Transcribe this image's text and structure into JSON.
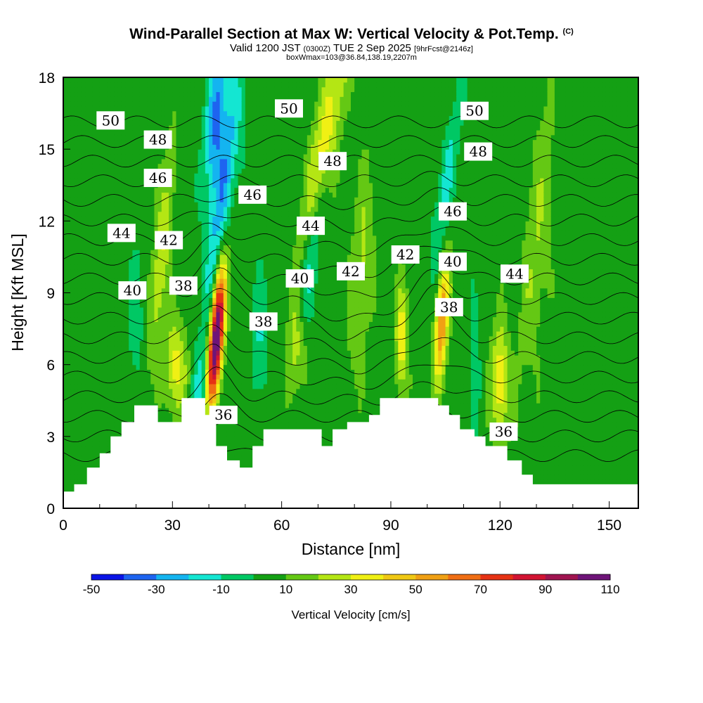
{
  "title": {
    "main": "Wind-Parallel Section at Max W: Vertical Velocity & Pot.Temp.",
    "copyright": "(C)",
    "valid_prefix": "Valid 1200 JST",
    "valid_utc": "(0300Z)",
    "valid_date": "TUE 2 Sep 2025",
    "forecast": "[9hrFcst@2146z]",
    "box": "boxWmax=103@36.84,138.19,2207m"
  },
  "chart_data": {
    "type": "heatmap",
    "xlabel": "Distance [nm]",
    "ylabel": "Height [Kft MSL]",
    "xlim": [
      0,
      158
    ],
    "ylim": [
      0,
      18
    ],
    "x_ticks": [
      0,
      30,
      60,
      90,
      120,
      150
    ],
    "y_ticks": [
      0,
      3,
      6,
      9,
      12,
      15,
      18
    ],
    "colorbar": {
      "label": "Vertical Velocity [cm/s]",
      "ticks": [
        -50,
        -30,
        -10,
        10,
        30,
        50,
        70,
        90,
        110
      ],
      "levels": [
        -50,
        -40,
        -30,
        -20,
        -10,
        0,
        10,
        20,
        30,
        40,
        50,
        60,
        70,
        80,
        90,
        100,
        110
      ],
      "colors": [
        "#0a14e6",
        "#1e64f0",
        "#14b4f0",
        "#14e6d2",
        "#00c864",
        "#14a014",
        "#64c814",
        "#b4e614",
        "#f0f014",
        "#f0c814",
        "#f0a014",
        "#f06e14",
        "#e63214",
        "#d21432",
        "#a01450",
        "#6e1478"
      ]
    },
    "theta_contours_K": [
      36,
      38,
      40,
      42,
      44,
      46,
      48,
      50
    ],
    "contour_labels": [
      {
        "text": "50",
        "x": 13,
        "y": 16.2
      },
      {
        "text": "48",
        "x": 26,
        "y": 15.4
      },
      {
        "text": "46",
        "x": 26,
        "y": 13.8
      },
      {
        "text": "44",
        "x": 16,
        "y": 11.5
      },
      {
        "text": "42",
        "x": 29,
        "y": 11.2
      },
      {
        "text": "40",
        "x": 19,
        "y": 9.1
      },
      {
        "text": "38",
        "x": 33,
        "y": 9.3
      },
      {
        "text": "46",
        "x": 52,
        "y": 13.1
      },
      {
        "text": "50",
        "x": 62,
        "y": 16.7
      },
      {
        "text": "48",
        "x": 74,
        "y": 14.5
      },
      {
        "text": "44",
        "x": 68,
        "y": 11.8
      },
      {
        "text": "40",
        "x": 65,
        "y": 9.6
      },
      {
        "text": "42",
        "x": 79,
        "y": 9.9
      },
      {
        "text": "42",
        "x": 94,
        "y": 10.6
      },
      {
        "text": "38",
        "x": 55,
        "y": 7.8
      },
      {
        "text": "36",
        "x": 44,
        "y": 3.9
      },
      {
        "text": "50",
        "x": 113,
        "y": 16.6
      },
      {
        "text": "48",
        "x": 114,
        "y": 14.9
      },
      {
        "text": "46",
        "x": 107,
        "y": 12.4
      },
      {
        "text": "40",
        "x": 107,
        "y": 10.3
      },
      {
        "text": "38",
        "x": 106,
        "y": 8.4
      },
      {
        "text": "44",
        "x": 124,
        "y": 9.8
      },
      {
        "text": "36",
        "x": 121,
        "y": 3.2
      }
    ],
    "terrain_height_kft": [
      {
        "x": 0,
        "y": 0.7
      },
      {
        "x": 3,
        "y": 1.0
      },
      {
        "x": 6.5,
        "y": 1.7
      },
      {
        "x": 10,
        "y": 2.3
      },
      {
        "x": 13,
        "y": 3.0
      },
      {
        "x": 16,
        "y": 3.6
      },
      {
        "x": 19.5,
        "y": 4.3
      },
      {
        "x": 26,
        "y": 3.6
      },
      {
        "x": 32.5,
        "y": 4.6
      },
      {
        "x": 39,
        "y": 3.9
      },
      {
        "x": 42,
        "y": 2.6
      },
      {
        "x": 45,
        "y": 2.0
      },
      {
        "x": 48.5,
        "y": 1.7
      },
      {
        "x": 52,
        "y": 2.6
      },
      {
        "x": 55,
        "y": 3.3
      },
      {
        "x": 71,
        "y": 2.6
      },
      {
        "x": 74,
        "y": 3.3
      },
      {
        "x": 78,
        "y": 3.6
      },
      {
        "x": 84,
        "y": 3.9
      },
      {
        "x": 87,
        "y": 4.6
      },
      {
        "x": 103,
        "y": 4.3
      },
      {
        "x": 106,
        "y": 3.9
      },
      {
        "x": 109,
        "y": 3.3
      },
      {
        "x": 113,
        "y": 3.0
      },
      {
        "x": 116,
        "y": 2.6
      },
      {
        "x": 122,
        "y": 2.0
      },
      {
        "x": 126,
        "y": 1.4
      },
      {
        "x": 129,
        "y": 1.0
      },
      {
        "x": 158,
        "y": 1.0
      }
    ]
  }
}
